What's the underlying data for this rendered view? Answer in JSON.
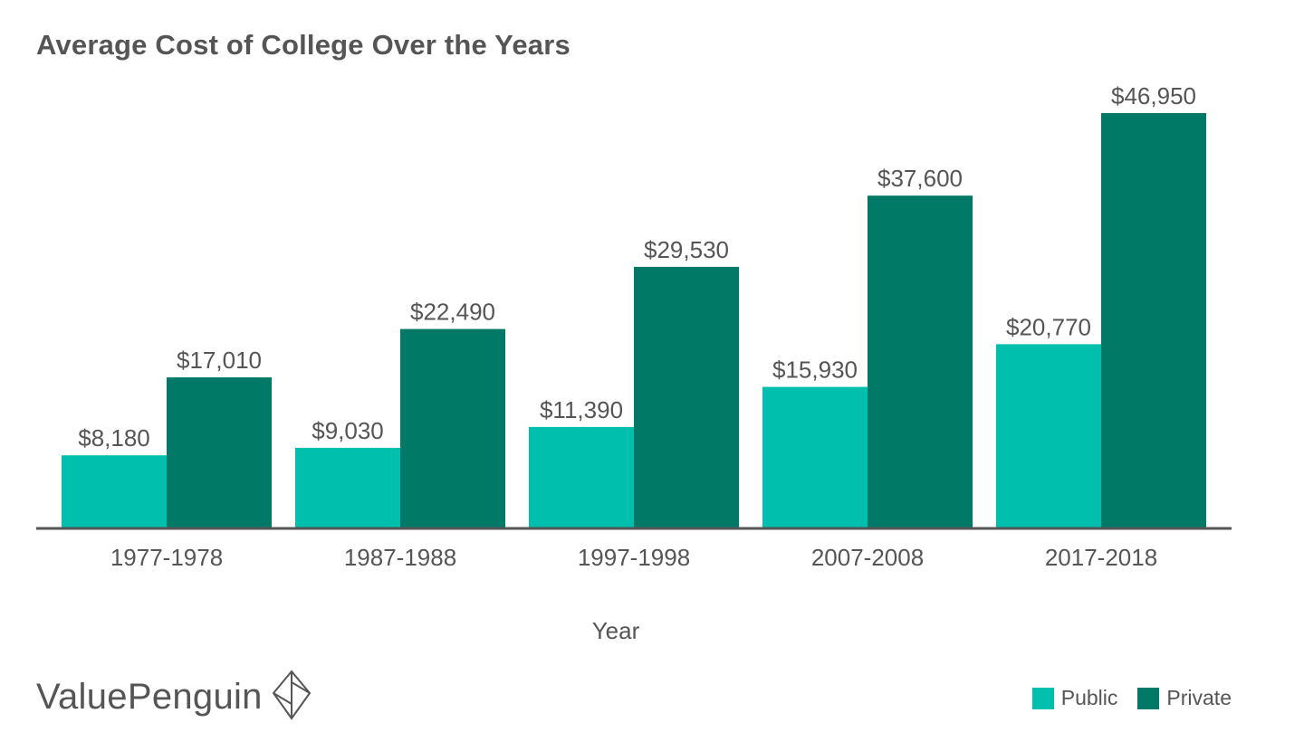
{
  "chart_data": {
    "type": "bar",
    "title": "Average Cost of College Over the Years",
    "xlabel": "Year",
    "ylabel": "",
    "categories": [
      "1977-1978",
      "1987-1988",
      "1997-1998",
      "2007-2008",
      "2017-2018"
    ],
    "series": [
      {
        "name": "Public",
        "color": "#00BFAD",
        "values": [
          8180,
          9030,
          11390,
          15930,
          20770
        ],
        "labels": [
          "$8,180",
          "$9,030",
          "$11,390",
          "$15,930",
          "$20,770"
        ]
      },
      {
        "name": "Private",
        "color": "#007A66",
        "values": [
          17010,
          22490,
          29530,
          37600,
          46950
        ],
        "labels": [
          "$17,010",
          "$22,490",
          "$29,530",
          "$37,600",
          "$46,950"
        ]
      }
    ],
    "ylim": [
      0,
      46950
    ],
    "grid": false,
    "legend_position": "bottom-right"
  },
  "brand": {
    "name": "ValuePenguin",
    "icon": "valuepenguin-logo-icon"
  },
  "colors": {
    "public": "#00BFAD",
    "private": "#007A66",
    "axis": "#555555",
    "text": "#555555"
  }
}
